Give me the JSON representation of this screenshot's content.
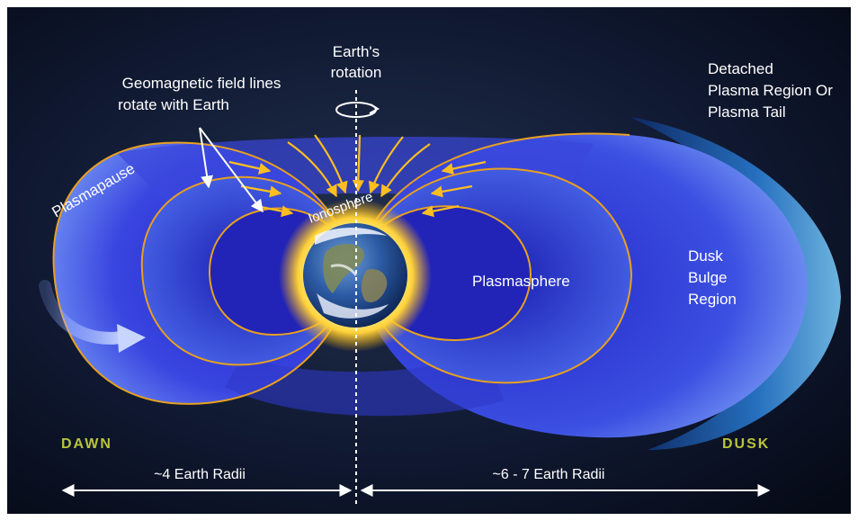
{
  "labels": {
    "field_lines": [
      "Geomagnetic field lines",
      "rotate with Earth"
    ],
    "rotation": [
      "Earth's",
      "rotation"
    ],
    "detached": [
      "Detached",
      "Plasma Region Or",
      "Plasma Tail"
    ],
    "plasmapause": "Plasmapause",
    "ionosphere": "Ionosphere",
    "plasmasphere": "Plasmasphere",
    "dusk_bulge": [
      "Dusk",
      "Bulge",
      "Region"
    ],
    "dawn": "DAWN",
    "dusk": "DUSK",
    "left_distance": "~4 Earth Radii",
    "right_distance": "~6 - 7 Earth Radii"
  },
  "colors": {
    "space": "#0b1224",
    "plasma_outer": "#2a2fd0",
    "plasma_inner": "#5b7cf0",
    "field_line": "#e8a020",
    "glow": "#ffd23a",
    "dawn_dusk_text": "#b8c43a",
    "tail": "#3fa0e8"
  },
  "icons": {
    "earth": "earth-globe-icon",
    "rotation": "rotation-arrow-icon",
    "flow": "plasma-flow-arrow-icon"
  }
}
